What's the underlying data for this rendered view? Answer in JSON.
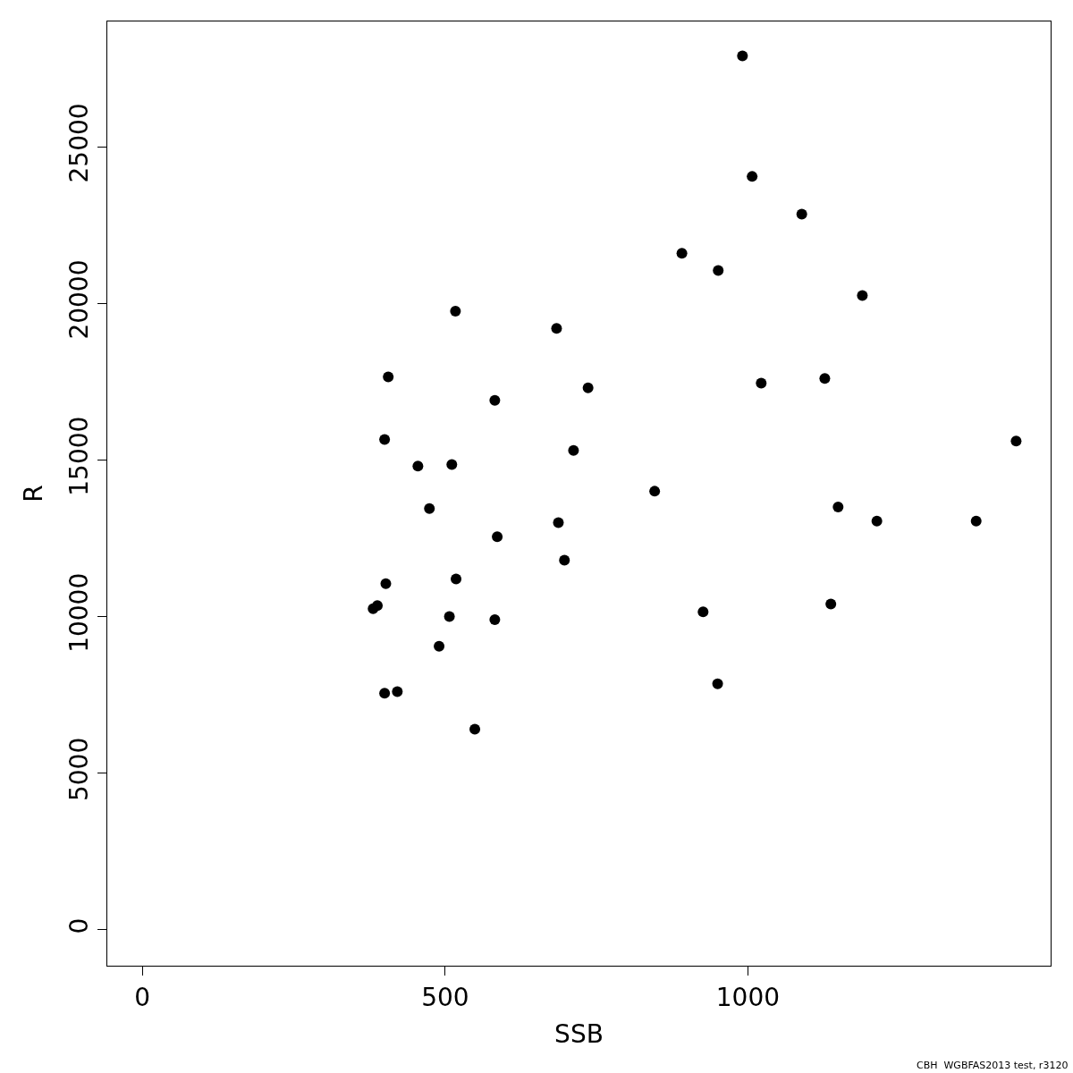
{
  "chart_data": {
    "type": "scatter",
    "xlabel": "SSB",
    "ylabel": "R",
    "x": [
      991,
      1007,
      1089,
      891,
      951,
      1189,
      517,
      684,
      406,
      1127,
      1022,
      736,
      582,
      400,
      1443,
      712,
      455,
      511,
      846,
      474,
      1149,
      687,
      1213,
      1377,
      586,
      697,
      518,
      402,
      1137,
      388,
      381,
      926,
      507,
      582,
      490,
      950,
      400,
      421,
      549
    ],
    "values": [
      27900,
      24050,
      22850,
      21600,
      21050,
      20250,
      19750,
      19200,
      17650,
      17600,
      17450,
      17300,
      16900,
      15650,
      15600,
      15300,
      14800,
      14850,
      14000,
      13450,
      13500,
      13000,
      13050,
      13050,
      12550,
      11800,
      11200,
      11050,
      10400,
      10350,
      10250,
      10150,
      10000,
      9900,
      9050,
      7850,
      7550,
      7600,
      6400
    ],
    "color": "#000000",
    "marker": "circle",
    "xlim": [
      -58,
      1500
    ],
    "ylim": [
      -1150,
      29000
    ],
    "xticks": [
      0,
      500,
      1000
    ],
    "yticks": [
      0,
      5000,
      10000,
      15000,
      20000,
      25000
    ],
    "annotations": [
      "CBH  WGBFAS2013 test, r3120"
    ]
  }
}
